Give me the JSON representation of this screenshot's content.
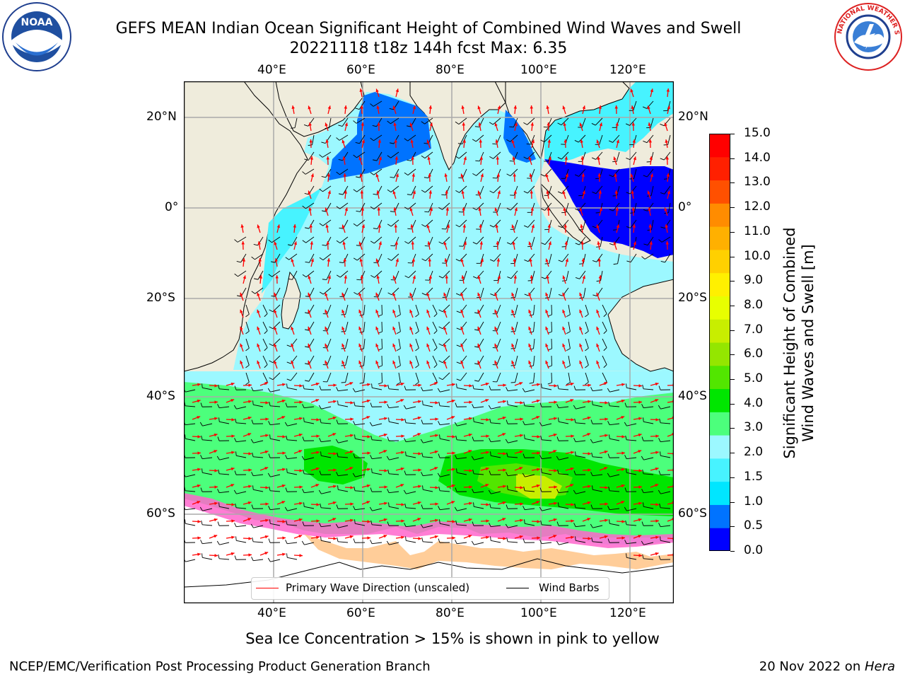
{
  "title": {
    "line1": "GEFS MEAN Indian Ocean Significant Height of Combined Wind Waves and Swell",
    "line2": "20221118 t18z 144h fcst   Max: 6.35"
  },
  "map": {
    "lon_labels": [
      "40°E",
      "60°E",
      "80°E",
      "100°E",
      "120°E"
    ],
    "lat_labels": [
      "20°N",
      "0°",
      "20°S",
      "40°S",
      "60°S"
    ],
    "colors": {
      "land": "#efecdc",
      "ice": "#ffffff",
      "grid": "#aaaaaa",
      "wave_arrow": "#ff0000",
      "wind_barb": "#000000"
    }
  },
  "legend": {
    "wave_label": "Primary Wave Direction (unscaled)",
    "wind_label": "Wind Barbs"
  },
  "colorbar": {
    "title_line1": "Significant Height of Combined",
    "title_line2": "Wind Waves and Swell [m]",
    "ticks": [
      "15.0",
      "14.0",
      "13.0",
      "12.0",
      "11.0",
      "10.0",
      "9.0",
      "8.0",
      "7.0",
      "6.0",
      "5.0",
      "4.0",
      "3.0",
      "2.0",
      "1.5",
      "1.0",
      "0.5",
      "0.0"
    ],
    "colors": [
      "#0000ff",
      "#0073ff",
      "#00e6ff",
      "#47f3ff",
      "#9cf8ff",
      "#4cff7c",
      "#00e600",
      "#52e600",
      "#94e600",
      "#c8ee00",
      "#e8ff00",
      "#fff000",
      "#ffd000",
      "#ffb000",
      "#ff8c00",
      "#ff5000",
      "#ff2000",
      "#ff0000"
    ]
  },
  "notes": {
    "sea_ice": "Sea Ice Concentration > 15% is shown in pink to yellow"
  },
  "footer": {
    "left": "NCEP/EMC/Verification Post Processing Product Generation Branch",
    "date": "20 Nov 2022 on ",
    "host": "Hera"
  },
  "logos": {
    "noaa_text": "NOAA",
    "nws_text": "NATIONAL WEATHER SERVICE"
  }
}
